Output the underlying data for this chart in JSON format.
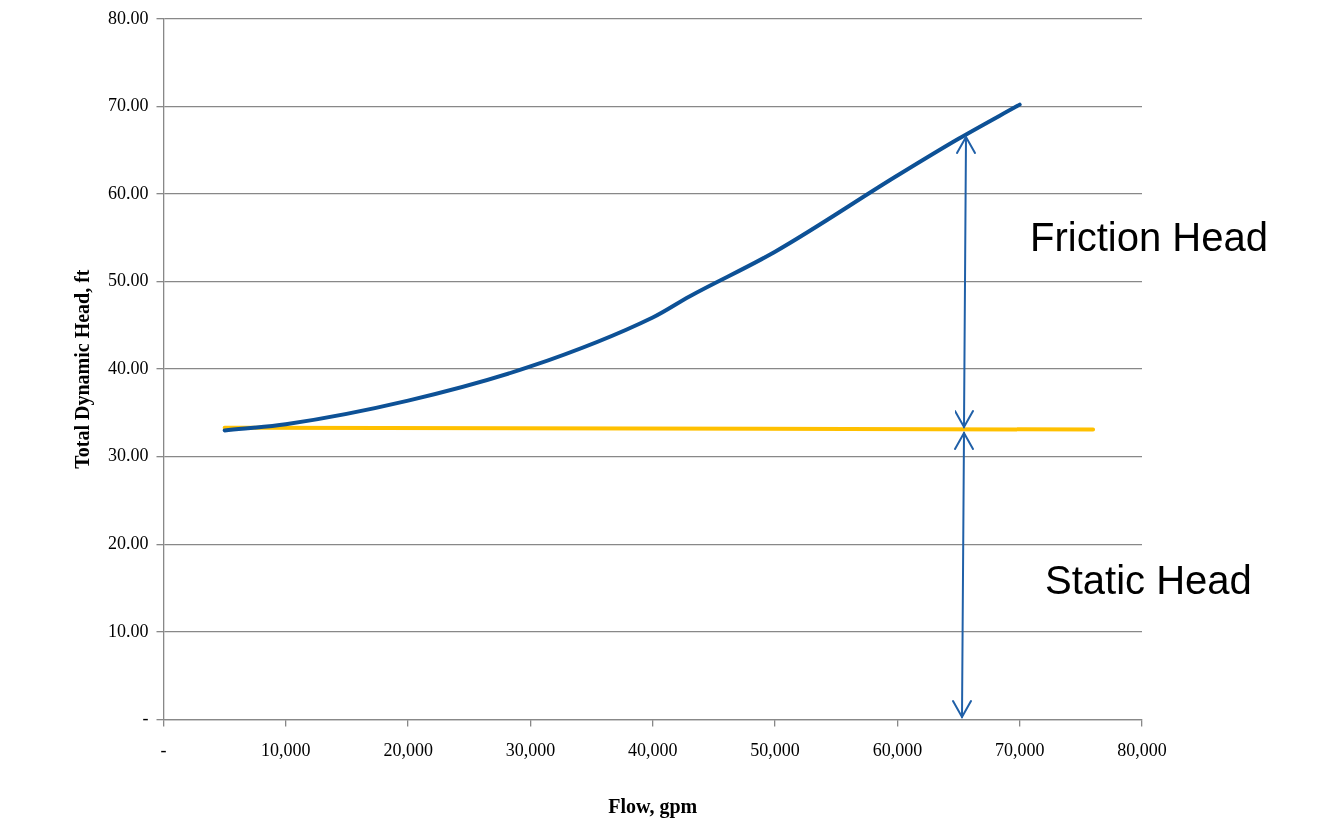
{
  "chart_data": {
    "type": "line",
    "xlabel": "Flow, gpm",
    "ylabel": "Total Dynamic Head, ft",
    "xlim": [
      0,
      80000
    ],
    "ylim": [
      0,
      80
    ],
    "xticks": [
      {
        "value": 0,
        "label": "-"
      },
      {
        "value": 10000,
        "label": "10,000"
      },
      {
        "value": 20000,
        "label": "20,000"
      },
      {
        "value": 30000,
        "label": "30,000"
      },
      {
        "value": 40000,
        "label": "40,000"
      },
      {
        "value": 50000,
        "label": "50,000"
      },
      {
        "value": 60000,
        "label": "60,000"
      },
      {
        "value": 70000,
        "label": "70,000"
      },
      {
        "value": 80000,
        "label": "80,000"
      }
    ],
    "yticks": [
      {
        "value": 0,
        "label": "-"
      },
      {
        "value": 10,
        "label": "10.00"
      },
      {
        "value": 20,
        "label": "20.00"
      },
      {
        "value": 30,
        "label": "30.00"
      },
      {
        "value": 40,
        "label": "40.00"
      },
      {
        "value": 50,
        "label": "50.00"
      },
      {
        "value": 60,
        "label": "60.00"
      },
      {
        "value": 70,
        "label": "70.00"
      },
      {
        "value": 80,
        "label": "80.00"
      }
    ],
    "series": [
      {
        "color": "#0d5196",
        "x": [
          5000,
          10000,
          20000,
          30000,
          40000,
          43000,
          50000,
          60000,
          65000,
          70000
        ],
        "values": [
          33.0,
          33.7,
          36.4,
          40.3,
          45.9,
          48.3,
          53.4,
          62.1,
          66.3,
          70.2
        ]
      },
      {
        "color": "#ffc000",
        "x": [
          5000,
          76000
        ],
        "values": [
          33.3,
          33.1
        ]
      }
    ],
    "annotations": [
      "Friction Head",
      "Static Head"
    ],
    "grid": "y",
    "legend": false,
    "marker": "none",
    "line_style": "solid"
  }
}
